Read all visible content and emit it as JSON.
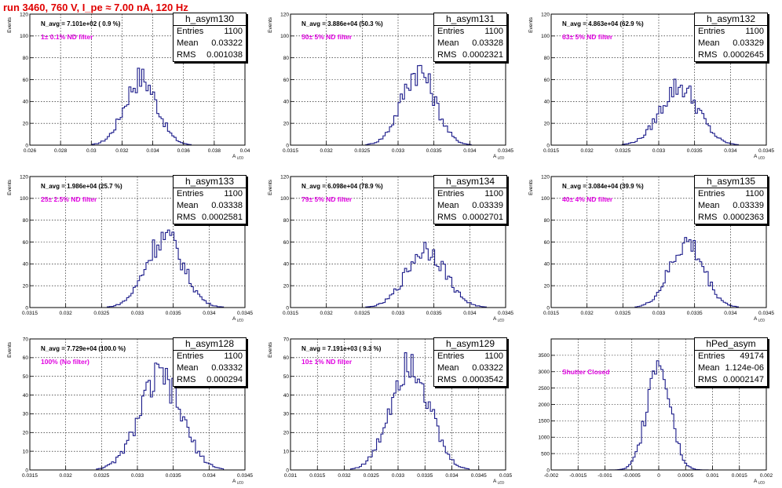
{
  "run_title": "run 3460,   760 V, I_pe ≈ 7.00 nA, 120 Hz",
  "colors": {
    "histogram": "#1b1b8a",
    "title": "#e00000",
    "annotation": "#e000e0"
  },
  "chart_data": [
    {
      "type": "bar",
      "name": "h_asym130",
      "stats": {
        "entries": "1100",
        "mean": "0.03322",
        "rms": "0.001038"
      },
      "annotation": "N_avg = 7.101e+02 ( 0.9 %)",
      "filter": "1± 0.1% ND filter",
      "xlabel": "A_LED",
      "ylabel": "Events",
      "xlim": [
        0.026,
        0.04
      ],
      "ylim": [
        0,
        120
      ],
      "xticks": [
        "0.026",
        "0.028",
        "0.03",
        "0.032",
        "0.034",
        "0.036",
        "0.038",
        "0.04"
      ],
      "yticks": [
        "0",
        "20",
        "40",
        "60",
        "80",
        "100",
        "120"
      ],
      "mean": 0.03322,
      "rms": 0.001038,
      "peak": 63,
      "bins": 100
    },
    {
      "type": "bar",
      "name": "h_asym131",
      "stats": {
        "entries": "1100",
        "mean": "0.03328",
        "rms": "0.0002321"
      },
      "annotation": "N_avg = 3.886e+04 (50.3 %)",
      "filter": "50± 5% ND filter",
      "xlabel": "A_LED",
      "ylabel": "Events",
      "xlim": [
        0.0315,
        0.0345
      ],
      "ylim": [
        0,
        120
      ],
      "xticks": [
        "0.0315",
        "0.032",
        "0.0325",
        "0.033",
        "0.0335",
        "0.034",
        "0.0345"
      ],
      "yticks": [
        "0",
        "20",
        "40",
        "60",
        "80",
        "100",
        "120"
      ],
      "mean": 0.03328,
      "rms": 0.0002321,
      "peak": 70,
      "bins": 100
    },
    {
      "type": "bar",
      "name": "h_asym132",
      "stats": {
        "entries": "1100",
        "mean": "0.03329",
        "rms": "0.0002645"
      },
      "annotation": "N_avg = 4.863e+04 (62.9 %)",
      "filter": "63± 5% ND filter",
      "xlabel": "A_LED",
      "ylabel": "Events",
      "xlim": [
        0.0315,
        0.0345
      ],
      "ylim": [
        0,
        120
      ],
      "xticks": [
        "0.0315",
        "0.032",
        "0.0325",
        "0.033",
        "0.0335",
        "0.034",
        "0.0345"
      ],
      "yticks": [
        "0",
        "20",
        "40",
        "60",
        "80",
        "100",
        "120"
      ],
      "mean": 0.03329,
      "rms": 0.0002645,
      "peak": 55,
      "bins": 100
    },
    {
      "type": "bar",
      "name": "h_asym133",
      "stats": {
        "entries": "1100",
        "mean": "0.03338",
        "rms": "0.0002581"
      },
      "annotation": "N_avg = 1.986e+04 (25.7 %)",
      "filter": "25± 2.5% ND filter",
      "xlabel": "A_LED",
      "ylabel": "Events",
      "xlim": [
        0.0315,
        0.0345
      ],
      "ylim": [
        0,
        120
      ],
      "xticks": [
        "0.0315",
        "0.032",
        "0.0325",
        "0.033",
        "0.0335",
        "0.034",
        "0.0345"
      ],
      "yticks": [
        "0",
        "20",
        "40",
        "60",
        "80",
        "100",
        "120"
      ],
      "mean": 0.03338,
      "rms": 0.0002581,
      "peak": 66,
      "bins": 100
    },
    {
      "type": "bar",
      "name": "h_asym134",
      "stats": {
        "entries": "1100",
        "mean": "0.03339",
        "rms": "0.0002701"
      },
      "annotation": "N_avg = 6.098e+04 (78.9 %)",
      "filter": "79± 5% ND filter",
      "xlabel": "A_LED",
      "ylabel": "Events",
      "xlim": [
        0.0315,
        0.0345
      ],
      "ylim": [
        0,
        120
      ],
      "xticks": [
        "0.0315",
        "0.032",
        "0.0325",
        "0.033",
        "0.0335",
        "0.034",
        "0.0345"
      ],
      "yticks": [
        "0",
        "20",
        "40",
        "60",
        "80",
        "100",
        "120"
      ],
      "mean": 0.03339,
      "rms": 0.0002701,
      "peak": 55,
      "bins": 100
    },
    {
      "type": "bar",
      "name": "h_asym135",
      "stats": {
        "entries": "1100",
        "mean": "0.03339",
        "rms": "0.0002363"
      },
      "annotation": "N_avg = 3.084e+04 (39.9 %)",
      "filter": "40± 4% ND filter",
      "xlabel": "A_LED",
      "ylabel": "Events",
      "xlim": [
        0.0315,
        0.0345
      ],
      "ylim": [
        0,
        120
      ],
      "xticks": [
        "0.0315",
        "0.032",
        "0.0325",
        "0.033",
        "0.0335",
        "0.034",
        "0.0345"
      ],
      "yticks": [
        "0",
        "20",
        "40",
        "60",
        "80",
        "100",
        "120"
      ],
      "mean": 0.03339,
      "rms": 0.0002363,
      "peak": 60,
      "bins": 100
    },
    {
      "type": "bar",
      "name": "h_asym128",
      "stats": {
        "entries": "1100",
        "mean": "0.03332",
        "rms": "0.000294"
      },
      "annotation": "N_avg = 7.729e+04 (100.0 %)",
      "filter": "100% (No filter)",
      "xlabel": "A_LED",
      "ylabel": "Events",
      "xlim": [
        0.0315,
        0.0345
      ],
      "ylim": [
        0,
        70
      ],
      "xticks": [
        "0.0315",
        "0.032",
        "0.0325",
        "0.033",
        "0.0335",
        "0.034",
        "0.0345"
      ],
      "yticks": [
        "0",
        "10",
        "20",
        "30",
        "40",
        "50",
        "60",
        "70"
      ],
      "mean": 0.03332,
      "rms": 0.000294,
      "peak": 50,
      "bins": 100
    },
    {
      "type": "bar",
      "name": "h_asym129",
      "stats": {
        "entries": "1100",
        "mean": "0.03322",
        "rms": "0.0003542"
      },
      "annotation": "N_avg = 7.191e+03 ( 9.3 %)",
      "filter": "10± 1% ND filter",
      "xlabel": "A_LED",
      "ylabel": "Events",
      "xlim": [
        0.031,
        0.035
      ],
      "ylim": [
        0,
        70
      ],
      "xticks": [
        "0.031",
        "0.0315",
        "0.032",
        "0.0325",
        "0.033",
        "0.0335",
        "0.034",
        "0.0345",
        "0.035"
      ],
      "yticks": [
        "0",
        "10",
        "20",
        "30",
        "40",
        "50",
        "60",
        "70"
      ],
      "mean": 0.03322,
      "rms": 0.0003542,
      "peak": 61,
      "bins": 100
    },
    {
      "type": "bar",
      "name": "hPed_asym",
      "stats": {
        "entries": "49174",
        "mean": "1.124e-06",
        "rms": "0.0002147"
      },
      "annotation": "",
      "filter": "Shutter Closed",
      "xlabel": "A_LED",
      "ylabel": "",
      "xlim": [
        -0.002,
        0.002
      ],
      "ylim": [
        0,
        4000
      ],
      "xticks": [
        "-0.002",
        "-0.0015",
        "-0.001",
        "-0.0005",
        "0",
        "0.0005",
        "0.001",
        "0.0015",
        "0.002"
      ],
      "yticks": [
        "0",
        "500",
        "1000",
        "1500",
        "2000",
        "2500",
        "3000",
        "3500"
      ],
      "mean": 1.124e-06,
      "rms": 0.0002147,
      "peak": 3600,
      "bins": 100
    }
  ]
}
